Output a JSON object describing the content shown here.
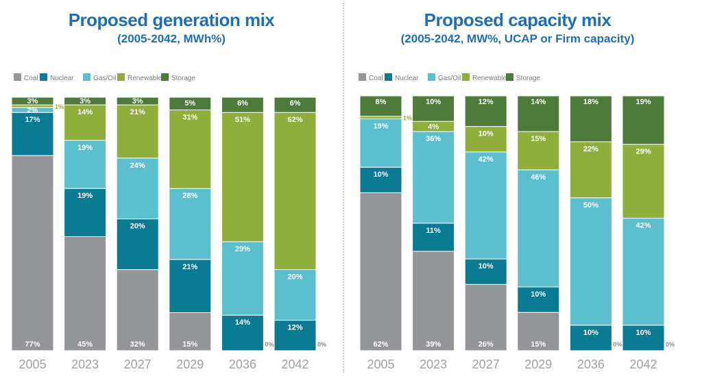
{
  "colors": {
    "Coal": "#939598",
    "Nuclear": "#0b7a93",
    "Gas/Oil": "#5bbfcd",
    "Renewables": "#8fae3c",
    "Storage": "#4e7a3b"
  },
  "chart_data": [
    {
      "type": "bar",
      "stacked": true,
      "title": "Proposed generation mix",
      "subtitle": "(2005-2042, MWh%)",
      "categories": [
        "2005",
        "2023",
        "2027",
        "2029",
        "2036",
        "2042"
      ],
      "ylim": [
        0,
        100
      ],
      "legend": "top-left",
      "series": [
        {
          "name": "Coal",
          "values": [
            77,
            45,
            32,
            15,
            0,
            0
          ],
          "labels": [
            "77%",
            "45%",
            "32%",
            "15%",
            "0%",
            "0%"
          ]
        },
        {
          "name": "Nuclear",
          "values": [
            17,
            19,
            20,
            21,
            14,
            12
          ],
          "labels": [
            "17%",
            "19%",
            "20%",
            "21%",
            "14%",
            "12%"
          ]
        },
        {
          "name": "Gas/Oil",
          "values": [
            2,
            19,
            24,
            28,
            29,
            20
          ],
          "labels": [
            "2%",
            "19%",
            "24%",
            "28%",
            "29%",
            "20%"
          ]
        },
        {
          "name": "Renewables",
          "values": [
            1,
            14,
            21,
            31,
            51,
            62
          ],
          "labels": [
            "1%",
            "14%",
            "21%",
            "31%",
            "51%",
            "62%"
          ]
        },
        {
          "name": "Storage",
          "values": [
            3,
            3,
            3,
            5,
            6,
            6
          ],
          "labels": [
            "3%",
            "3%",
            "3%",
            "5%",
            "6%",
            "6%"
          ]
        }
      ]
    },
    {
      "type": "bar",
      "stacked": true,
      "title": "Proposed capacity mix",
      "subtitle": "(2005-2042, MW%, UCAP or Firm capacity)",
      "categories": [
        "2005",
        "2023",
        "2027",
        "2029",
        "2036",
        "2042"
      ],
      "ylim": [
        0,
        100
      ],
      "legend": "top-left",
      "series": [
        {
          "name": "Coal",
          "values": [
            62,
            39,
            26,
            15,
            0,
            0
          ],
          "labels": [
            "62%",
            "39%",
            "26%",
            "15%",
            "0%",
            "0%"
          ]
        },
        {
          "name": "Nuclear",
          "values": [
            10,
            11,
            10,
            10,
            10,
            10
          ],
          "labels": [
            "10%",
            "11%",
            "10%",
            "10%",
            "10%",
            "10%"
          ]
        },
        {
          "name": "Gas/Oil",
          "values": [
            19,
            36,
            42,
            46,
            50,
            42
          ],
          "labels": [
            "19%",
            "36%",
            "42%",
            "46%",
            "50%",
            "42%"
          ]
        },
        {
          "name": "Renewables",
          "values": [
            1,
            4,
            10,
            15,
            22,
            29
          ],
          "labels": [
            "1%",
            "4%",
            "10%",
            "15%",
            "22%",
            "29%"
          ]
        },
        {
          "name": "Storage",
          "values": [
            8,
            10,
            12,
            14,
            18,
            19
          ],
          "labels": [
            "8%",
            "10%",
            "12%",
            "14%",
            "18%",
            "19%"
          ]
        }
      ]
    }
  ]
}
